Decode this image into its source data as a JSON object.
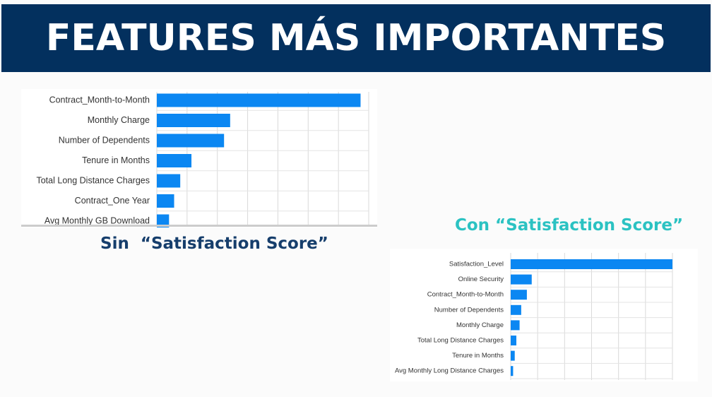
{
  "header": {
    "title": "FEATURES MÁS IMPORTANTES"
  },
  "captions": {
    "left": "Sin  “Satisfaction Score”",
    "right": "Con “Satisfaction Score”"
  },
  "colors": {
    "banner": "#03305e",
    "bar": "#0b87f2",
    "caption_left": "#163e6c",
    "caption_right": "#2bc2c2"
  },
  "chart_data": [
    {
      "type": "bar",
      "orientation": "horizontal",
      "categories": [
        "Contract_Month-to-Month",
        "Monthly Charge",
        "Number of Dependents",
        "Tenure in Months",
        "Total Long Distance Charges",
        "Contract_One Year",
        "Avg Monthly GB Download"
      ],
      "values": [
        1.0,
        0.36,
        0.33,
        0.17,
        0.115,
        0.085,
        0.06
      ],
      "xlim": [
        0,
        1.04
      ],
      "grid": true
    },
    {
      "type": "bar",
      "orientation": "horizontal",
      "categories": [
        "Satisfaction_Level",
        "Online Security",
        "Contract_Month-to-Month",
        "Number of Dependents",
        "Monthly Charge",
        "Total Long Distance Charges",
        "Tenure in Months",
        "Avg Monthly Long Distance Charges"
      ],
      "values": [
        1.0,
        0.13,
        0.1,
        0.065,
        0.055,
        0.035,
        0.025,
        0.015
      ],
      "xlim": [
        0,
        1.0
      ],
      "grid": true
    }
  ]
}
